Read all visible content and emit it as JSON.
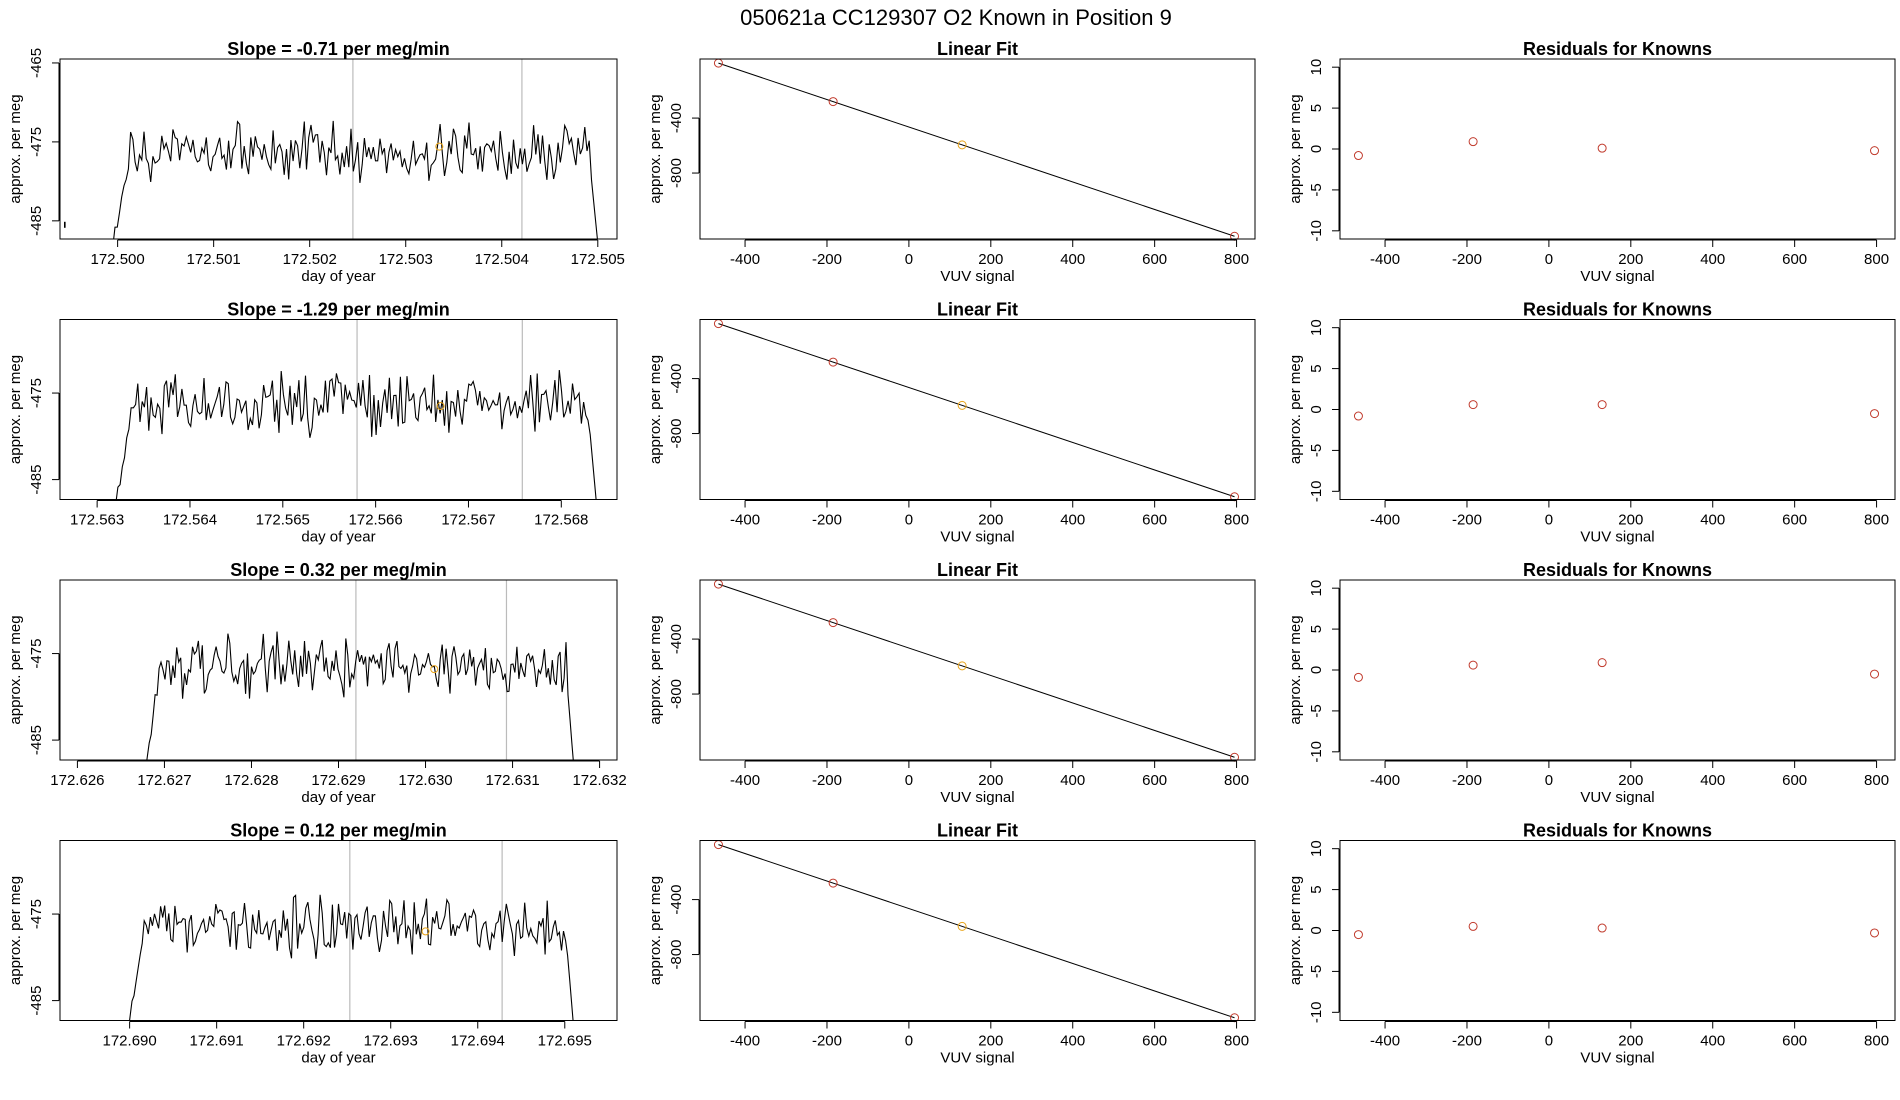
{
  "page": {
    "title": "050621a      CC129307   O2 Known in Position  9"
  },
  "chart_data": {
    "type": "figure-grid",
    "rows": [
      {
        "trace": {
          "type": "line",
          "title": "Slope =  -0.71  per meg/min",
          "xlabel": "day of year",
          "ylabel": "approx. per meg",
          "xlim": [
            172.4994,
            172.5052
          ],
          "ylim": [
            -487.3,
            -464.5
          ],
          "xticks": [
            "172.500",
            "172.501",
            "172.502",
            "172.503",
            "172.504",
            "172.505"
          ],
          "yticks": [
            "-465",
            "-475",
            "-485"
          ],
          "ytick_values": [
            -465,
            -475,
            -485
          ],
          "trace_start": 172.49995,
          "trace_end": 172.50505,
          "vlines": [
            172.50245,
            172.50421
          ],
          "highlight": {
            "x": 172.50335,
            "y": -475.6
          },
          "outlier": {
            "x": 172.49945,
            "y": -485.5
          },
          "seed": 11
        },
        "fit": {
          "type": "scatter",
          "title": "Linear Fit",
          "xlabel": "VUV signal",
          "ylabel": "approx. per meg",
          "points": [
            {
              "x": -465,
              "y": 0
            },
            {
              "x": -185,
              "y": -280
            },
            {
              "x": 130,
              "y": -595
            },
            {
              "x": 795,
              "y": -1260
            }
          ],
          "highlight_index": 2
        },
        "residuals": {
          "type": "scatter",
          "title": "Residuals for Knowns",
          "xlabel": "VUV signal",
          "ylabel": "approx. per meg",
          "points": [
            {
              "x": -465,
              "y": -0.8
            },
            {
              "x": -185,
              "y": 0.9
            },
            {
              "x": 130,
              "y": 0.1
            },
            {
              "x": 795,
              "y": -0.2
            }
          ]
        }
      },
      {
        "trace": {
          "type": "line",
          "title": "Slope =  -1.29  per meg/min",
          "xlabel": "day of year",
          "ylabel": "approx. per meg",
          "xlim": [
            172.5626,
            172.5686
          ],
          "ylim": [
            -487.3,
            -466.5
          ],
          "xticks": [
            "172.563",
            "172.564",
            "172.565",
            "172.566",
            "172.567",
            "172.568"
          ],
          "yticks": [
            "-475",
            "-485"
          ],
          "ytick_values": [
            -475,
            -485
          ],
          "trace_start": 172.5632,
          "trace_end": 172.56843,
          "vlines": [
            172.5658,
            172.56758
          ],
          "highlight": {
            "x": 172.5667,
            "y": -476.5
          },
          "outlier": null,
          "seed": 23
        },
        "fit": {
          "type": "scatter",
          "title": "Linear Fit",
          "xlabel": "VUV signal",
          "ylabel": "approx. per meg",
          "points": [
            {
              "x": -465,
              "y": 0
            },
            {
              "x": -185,
              "y": -280
            },
            {
              "x": 130,
              "y": -595
            },
            {
              "x": 795,
              "y": -1260
            }
          ],
          "highlight_index": 2
        },
        "residuals": {
          "type": "scatter",
          "title": "Residuals for Knowns",
          "xlabel": "VUV signal",
          "ylabel": "approx. per meg",
          "points": [
            {
              "x": -465,
              "y": -0.8
            },
            {
              "x": -185,
              "y": 0.6
            },
            {
              "x": 130,
              "y": 0.6
            },
            {
              "x": 795,
              "y": -0.5
            }
          ]
        }
      },
      {
        "trace": {
          "type": "line",
          "title": "Slope =  0.32  per meg/min",
          "xlabel": "day of year",
          "ylabel": "approx. per meg",
          "xlim": [
            172.6258,
            172.6322
          ],
          "ylim": [
            -487.3,
            -466.5
          ],
          "xticks": [
            "172.626",
            "172.627",
            "172.628",
            "172.629",
            "172.630",
            "172.631",
            "172.632"
          ],
          "yticks": [
            "-475",
            "-485"
          ],
          "ytick_values": [
            -475,
            -485
          ],
          "trace_start": 172.62678,
          "trace_end": 172.63175,
          "vlines": [
            172.6292,
            172.63093
          ],
          "highlight": {
            "x": 172.6301,
            "y": -476.8
          },
          "outlier": null,
          "seed": 37
        },
        "fit": {
          "type": "scatter",
          "title": "Linear Fit",
          "xlabel": "VUV signal",
          "ylabel": "approx. per meg",
          "points": [
            {
              "x": -465,
              "y": 0
            },
            {
              "x": -185,
              "y": -280
            },
            {
              "x": 130,
              "y": -595
            },
            {
              "x": 795,
              "y": -1260
            }
          ],
          "highlight_index": 2
        },
        "residuals": {
          "type": "scatter",
          "title": "Residuals for Knowns",
          "xlabel": "VUV signal",
          "ylabel": "approx. per meg",
          "points": [
            {
              "x": -465,
              "y": -0.9
            },
            {
              "x": -185,
              "y": 0.6
            },
            {
              "x": 130,
              "y": 0.9
            },
            {
              "x": 795,
              "y": -0.5
            }
          ]
        }
      },
      {
        "trace": {
          "type": "line",
          "title": "Slope =  0.12  per meg/min",
          "xlabel": "day of year",
          "ylabel": "approx. per meg",
          "xlim": [
            172.6892,
            172.6956
          ],
          "ylim": [
            -487.3,
            -466.5
          ],
          "xticks": [
            "172.690",
            "172.691",
            "172.692",
            "172.693",
            "172.694",
            "172.695"
          ],
          "yticks": [
            "-475",
            "-485"
          ],
          "ytick_values": [
            -475,
            -485
          ],
          "trace_start": 172.68998,
          "trace_end": 172.69515,
          "vlines": [
            172.69253,
            172.69428
          ],
          "highlight": {
            "x": 172.6934,
            "y": -477.0
          },
          "outlier": null,
          "seed": 53
        },
        "fit": {
          "type": "scatter",
          "title": "Linear Fit",
          "xlabel": "VUV signal",
          "ylabel": "approx. per meg",
          "points": [
            {
              "x": -465,
              "y": 0
            },
            {
              "x": -185,
              "y": -280
            },
            {
              "x": 130,
              "y": -595
            },
            {
              "x": 795,
              "y": -1260
            }
          ],
          "highlight_index": 2
        },
        "residuals": {
          "type": "scatter",
          "title": "Residuals for Knowns",
          "xlabel": "VUV signal",
          "ylabel": "approx. per meg",
          "points": [
            {
              "x": -465,
              "y": -0.5
            },
            {
              "x": -185,
              "y": 0.5
            },
            {
              "x": 130,
              "y": 0.3
            },
            {
              "x": 795,
              "y": -0.3
            }
          ]
        }
      }
    ],
    "shared_axes": {
      "fit_xlim": [
        -510,
        845
      ],
      "fit_ylim": [
        -1280,
        30
      ],
      "fit_xticks": [
        "-400",
        "-200",
        "0",
        "200",
        "400",
        "600",
        "800"
      ],
      "fit_xtick_values": [
        -400,
        -200,
        0,
        200,
        400,
        600,
        800
      ],
      "fit_yticks": [
        "-400",
        "-800"
      ],
      "fit_ytick_values": [
        -400,
        -800
      ],
      "resid_xlim": [
        -510,
        845
      ],
      "resid_ylim": [
        -11,
        11
      ],
      "resid_xticks": [
        "-400",
        "-200",
        "0",
        "200",
        "400",
        "600",
        "800"
      ],
      "resid_xtick_values": [
        -400,
        -200,
        0,
        200,
        400,
        600,
        800
      ],
      "resid_yticks": [
        "10",
        "5",
        "0",
        "-5",
        "-10"
      ],
      "resid_ytick_values": [
        10,
        5,
        0,
        -5,
        -10
      ]
    },
    "colors": {
      "line": "#000000",
      "fit_point": "#c0392b",
      "highlight_point": "#e8a317",
      "vline": "#bbbbbb",
      "frame": "#000000"
    }
  }
}
